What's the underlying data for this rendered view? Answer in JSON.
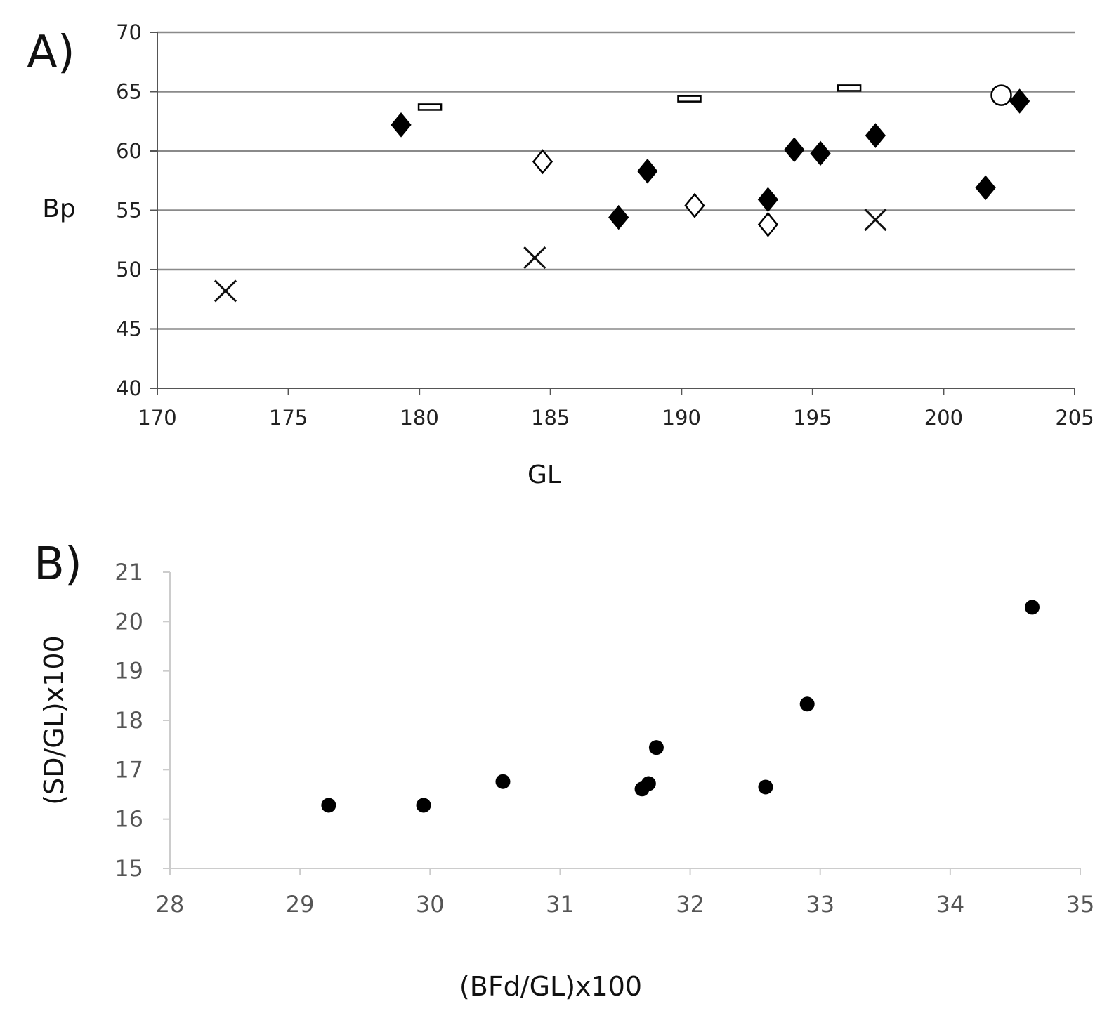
{
  "chart_data": [
    {
      "panel": "A)",
      "type": "scatter",
      "xlabel": "GL",
      "ylabel": "Bp",
      "xlim": [
        170,
        205
      ],
      "ylim": [
        40,
        70
      ],
      "xticks": [
        170,
        175,
        180,
        185,
        190,
        195,
        200,
        205
      ],
      "yticks": [
        40,
        45,
        50,
        55,
        60,
        65,
        70
      ],
      "grid": "horizontal",
      "series": [
        {
          "name": "filled-diamond",
          "marker": "filled-diamond",
          "points": [
            {
              "x": 179.3,
              "y": 62.2
            },
            {
              "x": 187.6,
              "y": 54.4
            },
            {
              "x": 188.7,
              "y": 58.3
            },
            {
              "x": 193.3,
              "y": 55.9
            },
            {
              "x": 194.3,
              "y": 60.1
            },
            {
              "x": 195.3,
              "y": 59.8
            },
            {
              "x": 197.4,
              "y": 61.3
            },
            {
              "x": 201.6,
              "y": 56.9
            },
            {
              "x": 202.9,
              "y": 64.2
            }
          ]
        },
        {
          "name": "open-diamond",
          "marker": "open-diamond",
          "points": [
            {
              "x": 184.7,
              "y": 59.1
            },
            {
              "x": 190.5,
              "y": 55.4
            },
            {
              "x": 193.3,
              "y": 53.8
            }
          ]
        },
        {
          "name": "cross",
          "marker": "x",
          "points": [
            {
              "x": 172.6,
              "y": 48.2
            },
            {
              "x": 184.4,
              "y": 51.0
            },
            {
              "x": 197.4,
              "y": 54.2
            }
          ]
        },
        {
          "name": "dash",
          "marker": "dash",
          "points": [
            {
              "x": 180.4,
              "y": 63.7
            },
            {
              "x": 190.3,
              "y": 64.4
            },
            {
              "x": 196.4,
              "y": 65.3
            }
          ]
        },
        {
          "name": "open-circle",
          "marker": "open-circle",
          "points": [
            {
              "x": 202.2,
              "y": 64.7
            }
          ]
        }
      ]
    },
    {
      "panel": "B)",
      "type": "scatter",
      "xlabel": "(BFd/GL)x100",
      "ylabel": "(SD/GL)x100",
      "xlim": [
        28,
        35
      ],
      "ylim": [
        15,
        21
      ],
      "xticks": [
        28,
        29,
        30,
        31,
        32,
        33,
        34,
        35
      ],
      "yticks": [
        15,
        16,
        17,
        18,
        19,
        20,
        21
      ],
      "grid": "none",
      "series": [
        {
          "name": "filled-circle",
          "marker": "filled-circle",
          "points": [
            {
              "x": 29.22,
              "y": 16.28
            },
            {
              "x": 29.95,
              "y": 16.28
            },
            {
              "x": 30.56,
              "y": 16.76
            },
            {
              "x": 31.63,
              "y": 16.61
            },
            {
              "x": 31.68,
              "y": 16.72
            },
            {
              "x": 31.74,
              "y": 17.45
            },
            {
              "x": 32.58,
              "y": 16.65
            },
            {
              "x": 32.9,
              "y": 18.33
            },
            {
              "x": 34.63,
              "y": 20.29
            }
          ]
        }
      ]
    }
  ]
}
